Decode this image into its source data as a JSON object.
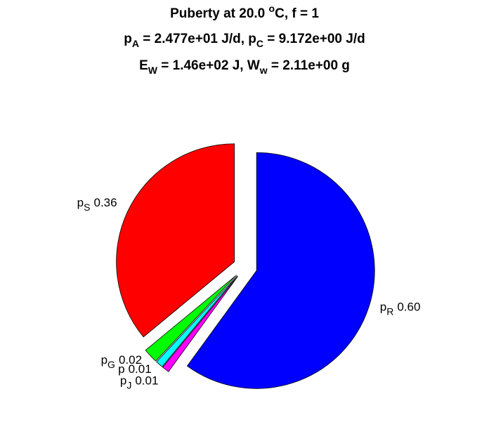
{
  "chart_data": {
    "type": "pie",
    "title": [
      [
        {
          "t": "Puberty at 20.0 "
        },
        {
          "t": "o",
          "s": "sup"
        },
        {
          "t": "C, f = 1"
        }
      ],
      [
        {
          "t": "p"
        },
        {
          "t": "A",
          "s": "sub"
        },
        {
          "t": " = 2.477e+01 J/d,  p"
        },
        {
          "t": "C",
          "s": "sub"
        },
        {
          "t": " = 9.172e+00 J/d"
        }
      ],
      [
        {
          "t": "E"
        },
        {
          "t": "W",
          "s": "sub"
        },
        {
          "t": " = 1.46e+02 J, W"
        },
        {
          "t": "w",
          "s": "sub"
        },
        {
          "t": " = 2.11e+00 g"
        }
      ]
    ],
    "labels": [
      {
        "t": "p",
        "sub": "S"
      },
      {
        "t": "p",
        "sub": "G"
      },
      {
        "t": "p"
      },
      {
        "t": "p",
        "sub": "J"
      },
      {
        "t": "p",
        "sub": "R"
      }
    ],
    "values": [
      0.36,
      0.02,
      0.01,
      0.01,
      0.6
    ],
    "value_labels": [
      "0.36",
      "0.02",
      "0.01",
      "0.01",
      "0.60"
    ],
    "colors": [
      "#ff0000",
      "#00ff00",
      "#00ffff",
      "#ff00ff",
      "#0000ff"
    ],
    "exploded": true
  }
}
